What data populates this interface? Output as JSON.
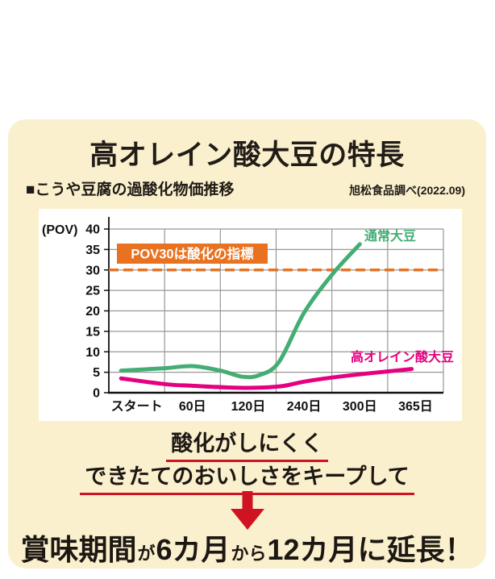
{
  "title": "高オレイン酸大豆の特長",
  "subtitle": "■こうや豆腐の過酸化物価推移",
  "source": "旭松食品調べ(2022.09)",
  "chart_data": {
    "type": "line",
    "title": "こうや豆腐の過酸化物価推移",
    "ylabel": "(POV)",
    "xlabel": "",
    "ylim": [
      0,
      40
    ],
    "yticks": [
      0,
      5,
      10,
      15,
      20,
      25,
      30,
      35,
      40
    ],
    "categories": [
      "スタート",
      "60日",
      "120日",
      "240日",
      "300日",
      "365日"
    ],
    "grid": true,
    "legend_position": "inline-labels",
    "threshold_line": {
      "value": 30,
      "label": "POV30は酸化の指標",
      "style": "dashed",
      "color": "#e8721f"
    },
    "series": [
      {
        "name": "通常大豆",
        "color": "#43ae74",
        "values": [
          5.4,
          6.5,
          4.2,
          19.5,
          36.3,
          null
        ],
        "points": [
          [
            -0.28,
            5.4
          ],
          [
            0.5,
            6.0
          ],
          [
            1,
            6.5
          ],
          [
            1.5,
            5.4
          ],
          [
            1.9,
            3.9
          ],
          [
            2.2,
            4.3
          ],
          [
            2.55,
            7.5
          ],
          [
            3,
            19.5
          ],
          [
            3.5,
            28.8
          ],
          [
            4,
            36.3
          ]
        ]
      },
      {
        "name": "高オレイン酸大豆",
        "color": "#e4007f",
        "values": [
          3.5,
          1.7,
          1.3,
          2.7,
          4.5,
          5.8
        ],
        "points": [
          [
            -0.28,
            3.5
          ],
          [
            0.5,
            2.1
          ],
          [
            1,
            1.7
          ],
          [
            1.6,
            1.3
          ],
          [
            2.1,
            1.2
          ],
          [
            2.6,
            1.6
          ],
          [
            3,
            2.7
          ],
          [
            3.5,
            3.7
          ],
          [
            4,
            4.5
          ],
          [
            4.5,
            5.2
          ],
          [
            4.93,
            5.8
          ]
        ]
      }
    ]
  },
  "callout": {
    "line1": "酸化がしにくく",
    "line2": "できたてのおいしさをキープして"
  },
  "conclusion": {
    "segments": [
      {
        "text": "賞味期間"
      },
      {
        "text": "が"
      },
      {
        "text": "6カ月"
      },
      {
        "text": "から"
      },
      {
        "text": "12カ月に延長！"
      }
    ]
  },
  "colors": {
    "card_background": "#faf0cd",
    "panel_background": "#ffffff",
    "text": "#1f1a16",
    "gridline": "#989898",
    "axis": "#111111",
    "orange": "#e8721f",
    "green": "#43ae74",
    "magenta": "#e4007f",
    "red": "#cf1322"
  }
}
